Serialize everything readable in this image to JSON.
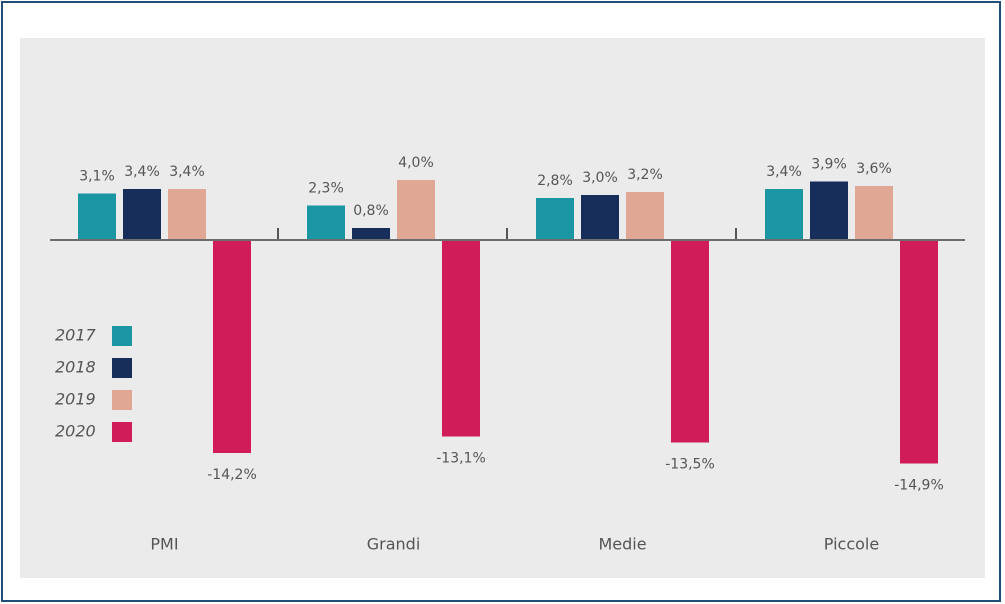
{
  "chart_data": {
    "type": "bar",
    "categories": [
      "PMI",
      "Grandi",
      "Medie",
      "Piccole"
    ],
    "series": [
      {
        "name": "2017",
        "color": "#1b97a3",
        "values": [
          3.1,
          2.3,
          2.8,
          3.4
        ],
        "value_labels": [
          "3,1%",
          "2,3%",
          "2,8%",
          "3,4%"
        ]
      },
      {
        "name": "2018",
        "color": "#172d5a",
        "values": [
          3.4,
          0.8,
          3.0,
          3.9
        ],
        "value_labels": [
          "3,4%",
          "0,8%",
          "3,0%",
          "3,9%"
        ]
      },
      {
        "name": "2019",
        "color": "#e0a894",
        "values": [
          3.4,
          4.0,
          3.2,
          3.6
        ],
        "value_labels": [
          "3,4%",
          "4,0%",
          "3,2%",
          "3,6%"
        ]
      },
      {
        "name": "2020",
        "color": "#d01d5a",
        "values": [
          -14.2,
          -13.1,
          -13.5,
          -14.9
        ],
        "value_labels": [
          "-14,2%",
          "-13,1%",
          "-13,5%",
          "-14,9%"
        ]
      }
    ],
    "legend": "left"
  }
}
